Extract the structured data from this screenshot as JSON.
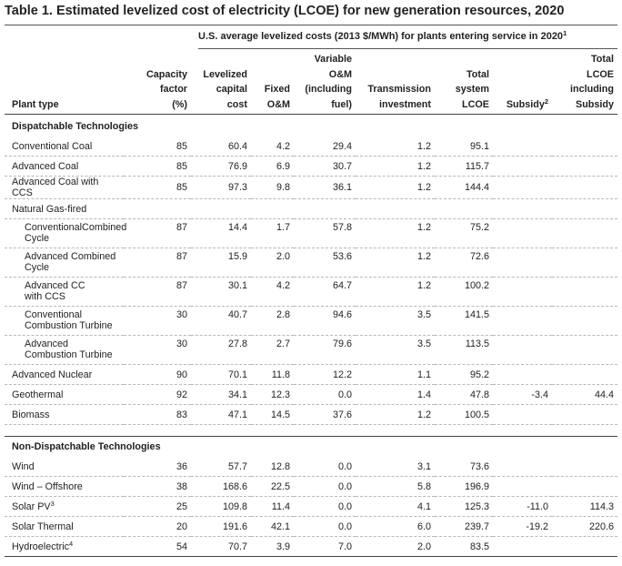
{
  "title": "Table 1. Estimated levelized cost of electricity (LCOE) for new generation resources, 2020",
  "superheader": {
    "text": "U.S. average levelized costs (2013 $/MWh) for plants entering service in 2020",
    "sup": "1"
  },
  "columns": {
    "plant_type": "Plant type",
    "capacity": [
      "Capacity",
      "factor",
      "(%)"
    ],
    "capital": [
      "Levelized",
      "capital",
      "cost"
    ],
    "fixed": [
      "Fixed",
      "O&M"
    ],
    "variable": [
      "Variable",
      "O&M",
      "(including",
      "fuel)"
    ],
    "transmission": [
      "Transmission",
      "investment"
    ],
    "total": [
      "Total",
      "system",
      "LCOE"
    ],
    "subsidy": "Subsidy",
    "subsidy_sup": "2",
    "total_subsidy": [
      "Total",
      "LCOE",
      "including",
      "Subsidy"
    ]
  },
  "sections": {
    "dispatchable": "Dispatchable Technologies",
    "natural_gas": "Natural Gas-fired",
    "non_dispatchable": "Non-Dispatchable Technologies"
  },
  "rows": {
    "conv_coal": {
      "name": "Conventional Coal",
      "cf": "85",
      "cap": "60.4",
      "fix": "4.2",
      "var": "29.4",
      "trans": "1.2",
      "total": "95.1",
      "sub": "",
      "tsub": ""
    },
    "adv_coal": {
      "name": "Advanced Coal",
      "cf": "85",
      "cap": "76.9",
      "fix": "6.9",
      "var": "30.7",
      "trans": "1.2",
      "total": "115.7",
      "sub": "",
      "tsub": ""
    },
    "adv_coal_ccs": {
      "name": "Advanced Coal with CCS",
      "cf": "85",
      "cap": "97.3",
      "fix": "9.8",
      "var": "36.1",
      "trans": "1.2",
      "total": "144.4",
      "sub": "",
      "tsub": ""
    },
    "conv_cc": {
      "name": "ConventionalCombined Cycle",
      "cf": "87",
      "cap": "14.4",
      "fix": "1.7",
      "var": "57.8",
      "trans": "1.2",
      "total": "75.2",
      "sub": "",
      "tsub": ""
    },
    "adv_cc": {
      "name": "Advanced Combined Cycle",
      "cf": "87",
      "cap": "15.9",
      "fix": "2.0",
      "var": "53.6",
      "trans": "1.2",
      "total": "72.6",
      "sub": "",
      "tsub": ""
    },
    "adv_cc_ccs": {
      "name": "Advanced CC with CCS",
      "cf": "87",
      "cap": "30.1",
      "fix": "4.2",
      "var": "64.7",
      "trans": "1.2",
      "total": "100.2",
      "sub": "",
      "tsub": ""
    },
    "conv_ct": {
      "name": "Conventional Combustion Turbine",
      "cf": "30",
      "cap": "40.7",
      "fix": "2.8",
      "var": "94.6",
      "trans": "3.5",
      "total": "141.5",
      "sub": "",
      "tsub": ""
    },
    "adv_ct": {
      "name": "Advanced Combustion Turbine",
      "cf": "30",
      "cap": "27.8",
      "fix": "2.7",
      "var": "79.6",
      "trans": "3.5",
      "total": "113.5",
      "sub": "",
      "tsub": ""
    },
    "adv_nuclear": {
      "name": "Advanced Nuclear",
      "cf": "90",
      "cap": "70.1",
      "fix": "11.8",
      "var": "12.2",
      "trans": "1.1",
      "total": "95.2",
      "sub": "",
      "tsub": ""
    },
    "geothermal": {
      "name": "Geothermal",
      "cf": "92",
      "cap": "34.1",
      "fix": "12.3",
      "var": "0.0",
      "trans": "1.4",
      "total": "47.8",
      "sub": "-3.4",
      "tsub": "44.4"
    },
    "biomass": {
      "name": "Biomass",
      "cf": "83",
      "cap": "47.1",
      "fix": "14.5",
      "var": "37.6",
      "trans": "1.2",
      "total": "100.5",
      "sub": "",
      "tsub": ""
    },
    "wind": {
      "name": "Wind",
      "cf": "36",
      "cap": "57.7",
      "fix": "12.8",
      "var": "0.0",
      "trans": "3.1",
      "total": "73.6",
      "sub": "",
      "tsub": ""
    },
    "wind_offshore": {
      "name": "Wind – Offshore",
      "cf": "38",
      "cap": "168.6",
      "fix": "22.5",
      "var": "0.0",
      "trans": "5.8",
      "total": "196.9",
      "sub": "",
      "tsub": ""
    },
    "solar_pv": {
      "name": "Solar PV",
      "sup": "3",
      "cf": "25",
      "cap": "109.8",
      "fix": "11.4",
      "var": "0.0",
      "trans": "4.1",
      "total": "125.3",
      "sub": "-11.0",
      "tsub": "114.3"
    },
    "solar_thermal": {
      "name": "Solar Thermal",
      "cf": "20",
      "cap": "191.6",
      "fix": "42.1",
      "var": "0.0",
      "trans": "6.0",
      "total": "239.7",
      "sub": "-19.2",
      "tsub": "220.6"
    },
    "hydro": {
      "name": "Hydroelectric",
      "sup": "4",
      "cf": "54",
      "cap": "70.7",
      "fix": "3.9",
      "var": "7.0",
      "trans": "2.0",
      "total": "83.5",
      "sub": "",
      "tsub": ""
    }
  }
}
